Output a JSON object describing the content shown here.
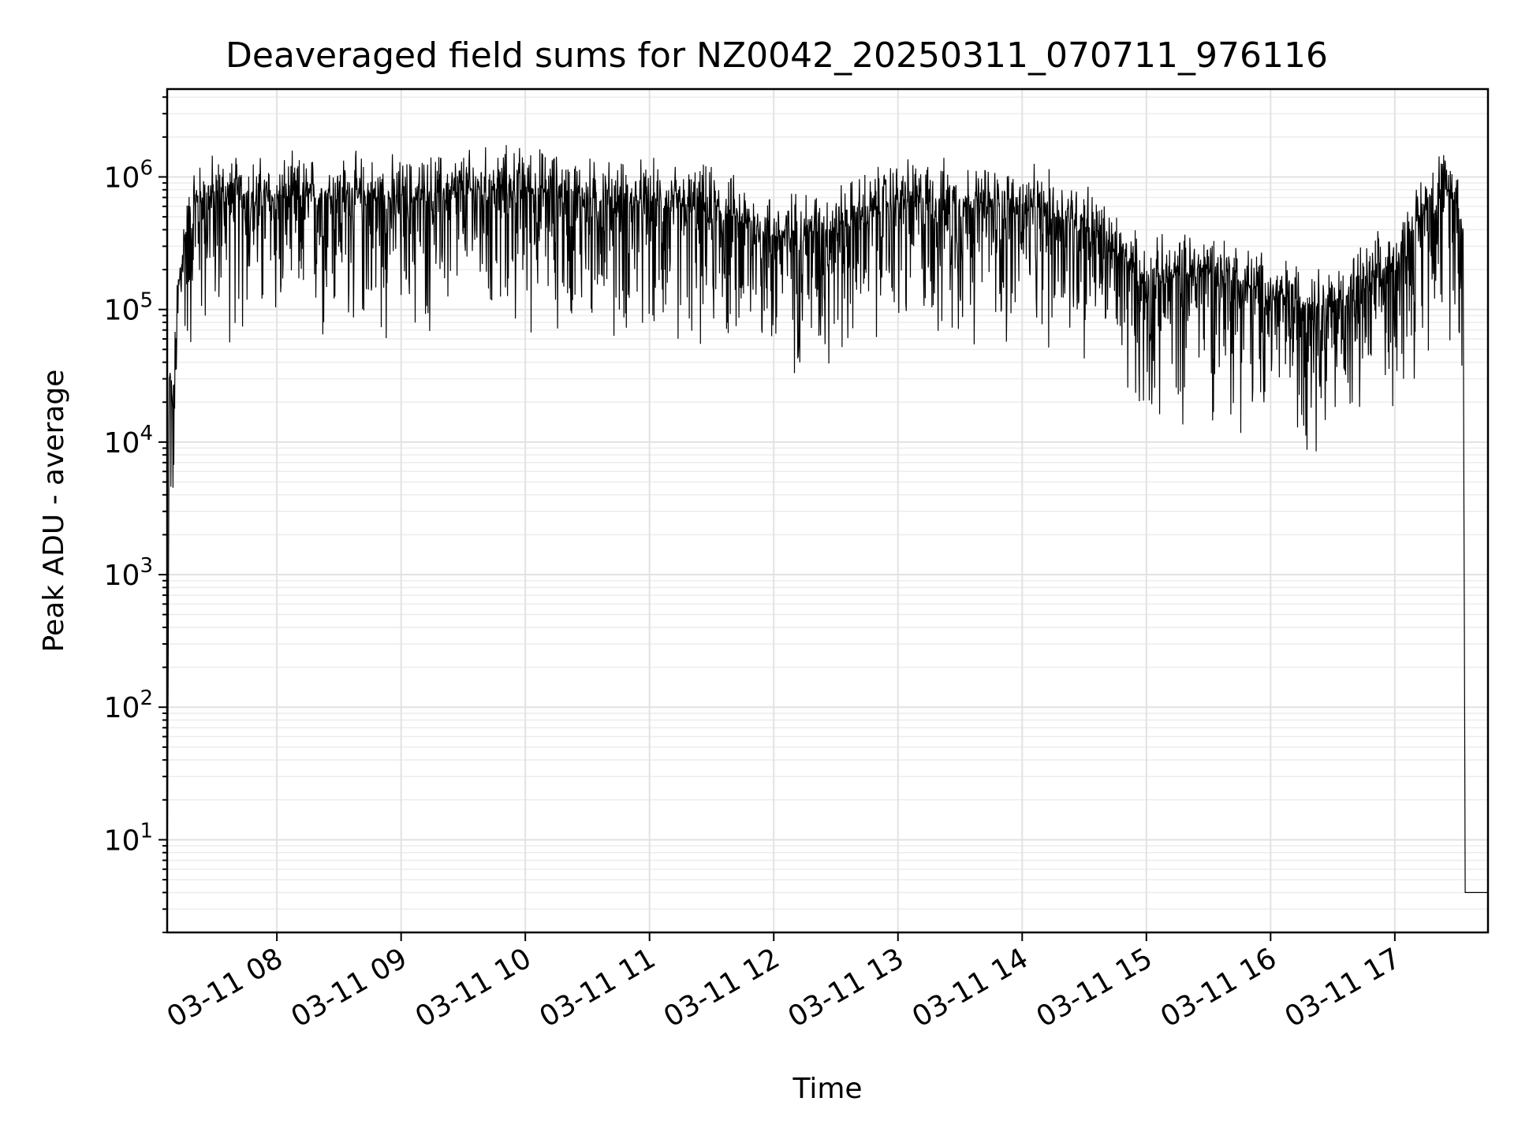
{
  "chart_data": {
    "type": "line",
    "title": "Deaveraged field sums for NZ0042_20250311_070711_976116",
    "xlabel": "Time",
    "ylabel": "Peak ADU - average",
    "yscale": "log",
    "ylim": [
      2,
      4600000
    ],
    "xlim": [
      "2025-03-11 07:07",
      "2025-03-11 17:45"
    ],
    "grid": true,
    "x_ticks": [
      "03-11 08",
      "03-11 09",
      "03-11 10",
      "03-11 11",
      "03-11 12",
      "03-11 13",
      "03-11 14",
      "03-11 15",
      "03-11 16",
      "03-11 17"
    ],
    "y_ticks": [
      {
        "base": "10",
        "exp": "1",
        "value": 10
      },
      {
        "base": "10",
        "exp": "2",
        "value": 100
      },
      {
        "base": "10",
        "exp": "3",
        "value": 1000
      },
      {
        "base": "10",
        "exp": "4",
        "value": 10000
      },
      {
        "base": "10",
        "exp": "5",
        "value": 100000
      },
      {
        "base": "10",
        "exp": "6",
        "value": 1000000
      }
    ],
    "series": [
      {
        "color": "#000000",
        "x": [
          "2025-03-11 07:07",
          "2025-03-11 07:08",
          "2025-03-11 07:10",
          "2025-03-11 07:12",
          "2025-03-11 07:15",
          "2025-03-11 07:20",
          "2025-03-11 07:30",
          "2025-03-11 08:00",
          "2025-03-11 08:30",
          "2025-03-11 09:00",
          "2025-03-11 09:30",
          "2025-03-11 10:00",
          "2025-03-11 10:30",
          "2025-03-11 11:00",
          "2025-03-11 11:30",
          "2025-03-11 12:00",
          "2025-03-11 12:30",
          "2025-03-11 13:00",
          "2025-03-11 13:30",
          "2025-03-11 14:00",
          "2025-03-11 14:30",
          "2025-03-11 15:00",
          "2025-03-11 15:30",
          "2025-03-11 16:00",
          "2025-03-11 16:30",
          "2025-03-11 17:00",
          "2025-03-11 17:20",
          "2025-03-11 17:30",
          "2025-03-11 17:33",
          "2025-03-11 17:34",
          "2025-03-11 17:45"
        ],
        "y": [
          2,
          30000,
          15000,
          120000,
          300000,
          600000,
          700000,
          650000,
          700000,
          650000,
          750000,
          800000,
          650000,
          600000,
          550000,
          350000,
          400000,
          650000,
          600000,
          550000,
          450000,
          150000,
          200000,
          120000,
          100000,
          200000,
          800000,
          700000,
          300000,
          4,
          4
        ],
        "noise": {
          "low": 0.1,
          "high": 2.5
        }
      }
    ]
  }
}
